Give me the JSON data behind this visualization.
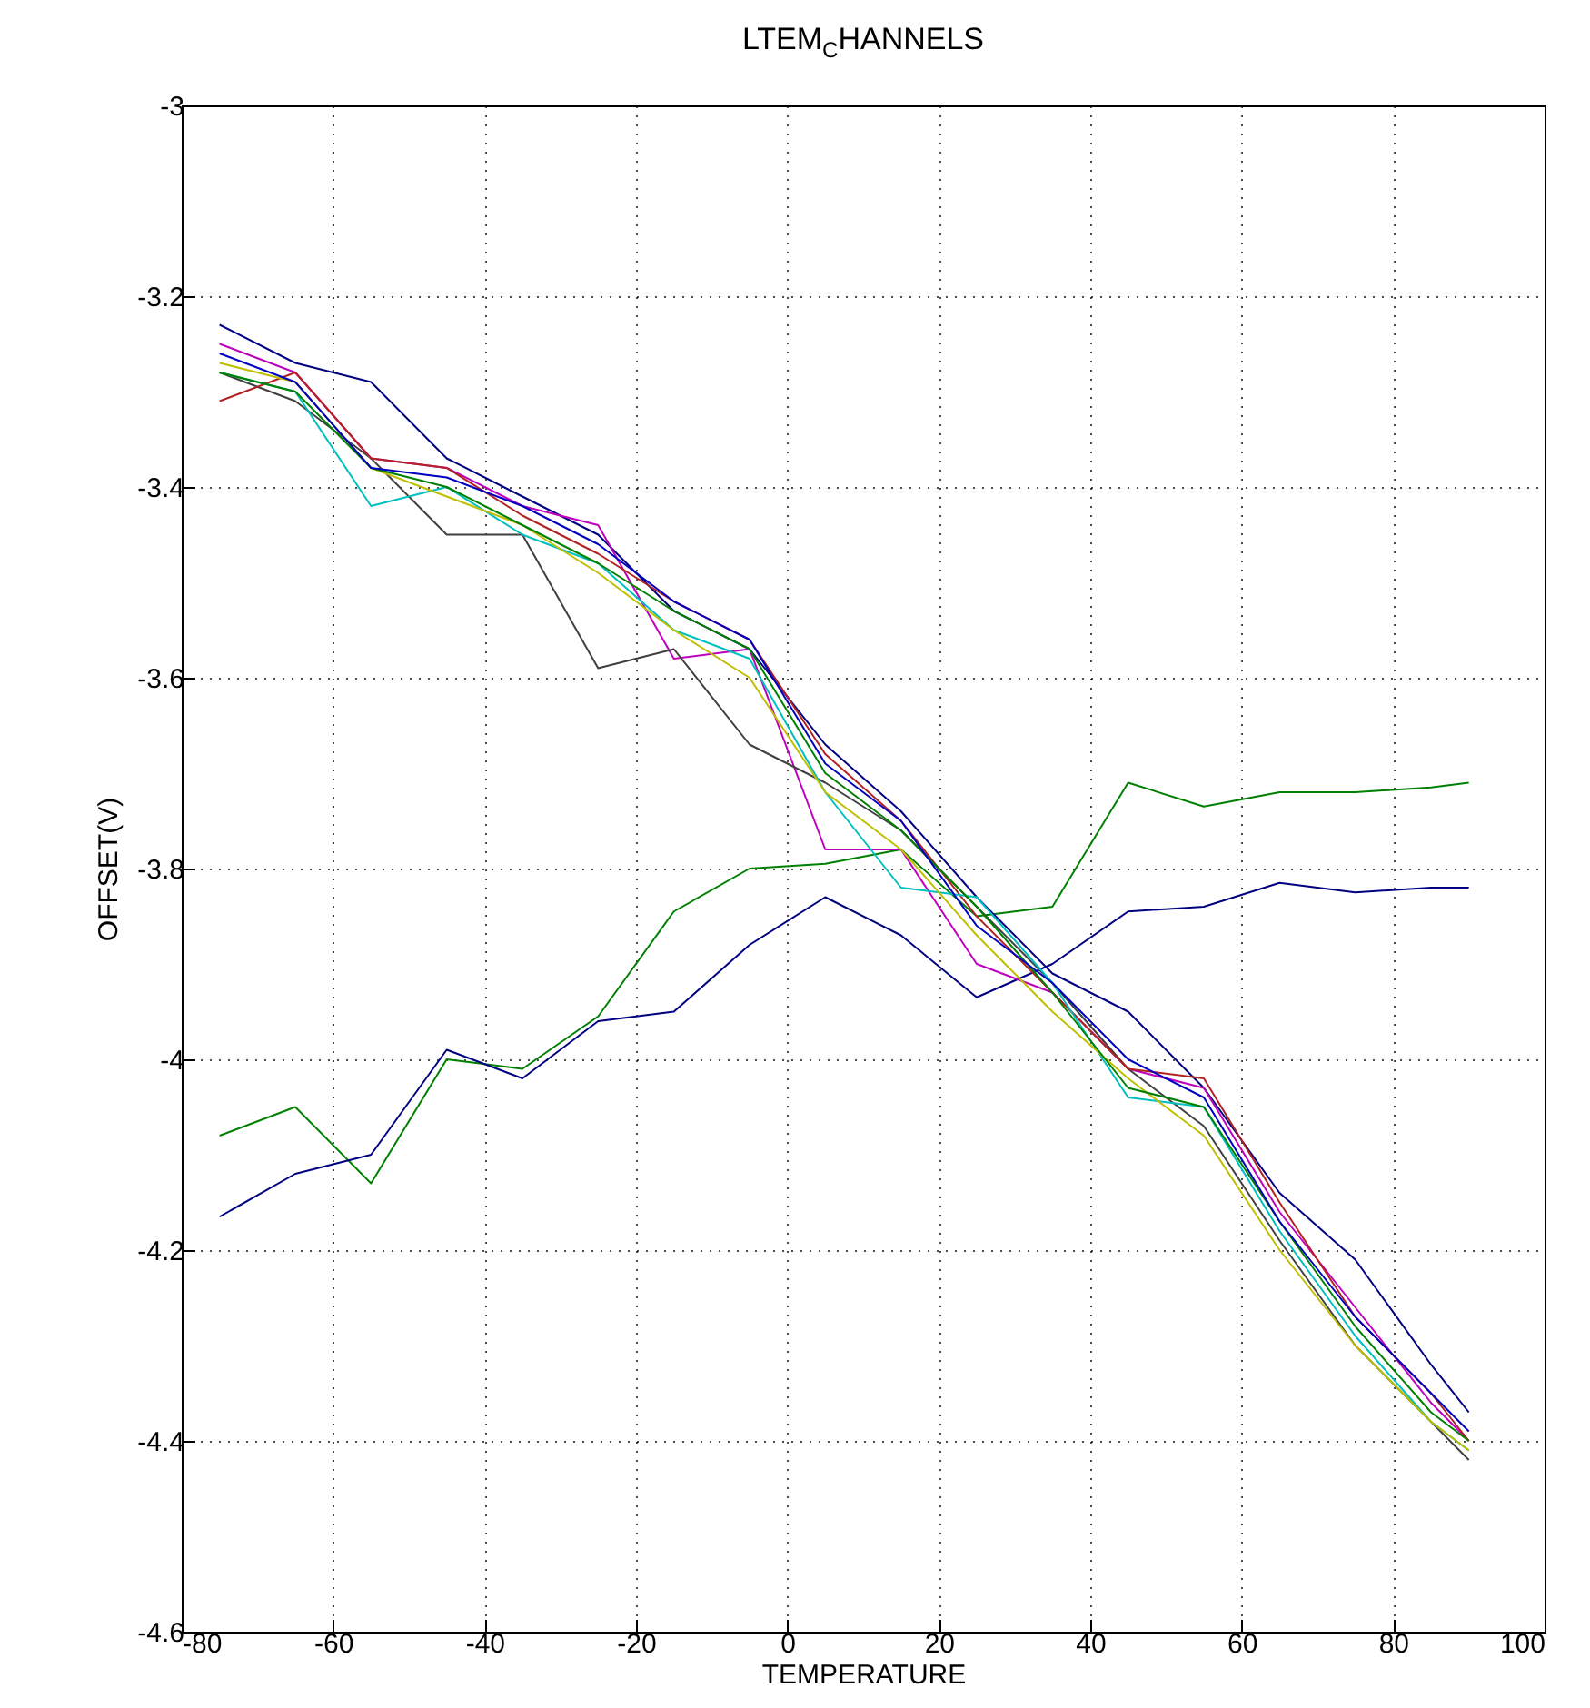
{
  "chart_data": {
    "type": "line",
    "title": "LTEM$_{C}$HANNELS",
    "xlabel": "TEMPERATURE",
    "ylabel": "OFFSET(V)",
    "x": [
      -75,
      -65,
      -55,
      -45,
      -35,
      -25,
      -15,
      -5,
      5,
      15,
      25,
      35,
      45,
      55,
      65,
      75,
      85,
      90
    ],
    "xlim": [
      -80,
      100
    ],
    "xticks": [
      -80,
      -60,
      -40,
      -20,
      0,
      20,
      40,
      60,
      80,
      100
    ],
    "ylim": [
      -4.6,
      -3
    ],
    "yticks": [
      -4.6,
      -4.4,
      -4.2,
      -4,
      -3.8,
      -3.6,
      -3.4,
      -3.2,
      -3
    ],
    "grid": true,
    "legend": false,
    "series": [
      {
        "color": "#008000",
        "values": [
          -4.08,
          -4.05,
          -4.13,
          -4.0,
          -4.01,
          -3.955,
          -3.845,
          -3.8,
          -3.795,
          -3.78,
          -3.85,
          -3.84,
          -3.71,
          -3.735,
          -3.72,
          -3.72,
          -3.715,
          -3.71
        ]
      },
      {
        "color": "#000080",
        "values": [
          -4.165,
          -4.12,
          -4.1,
          -3.99,
          -4.02,
          -3.96,
          -3.95,
          -3.88,
          -3.83,
          -3.87,
          -3.935,
          -3.9,
          -3.845,
          -3.84,
          -3.815,
          -3.825,
          -3.82,
          -3.82
        ]
      },
      {
        "color": "#000080",
        "values": [
          -3.23,
          -3.27,
          -3.29,
          -3.37,
          -3.41,
          -3.45,
          -3.53,
          -3.57,
          -3.67,
          -3.74,
          -3.83,
          -3.91,
          -3.95,
          -4.03,
          -4.14,
          -4.21,
          -4.32,
          -4.37
        ]
      },
      {
        "color": "#bf00bf",
        "values": [
          -3.25,
          -3.28,
          -3.37,
          -3.38,
          -3.42,
          -3.44,
          -3.58,
          -3.57,
          -3.78,
          -3.78,
          -3.9,
          -3.93,
          -4.01,
          -4.03,
          -4.16,
          -4.26,
          -4.36,
          -4.4
        ]
      },
      {
        "color": "#404040",
        "values": [
          -3.28,
          -3.31,
          -3.37,
          -3.45,
          -3.45,
          -3.59,
          -3.57,
          -3.67,
          -3.71,
          -3.76,
          -3.84,
          -3.92,
          -4.01,
          -4.07,
          -4.19,
          -4.3,
          -4.38,
          -4.42
        ]
      },
      {
        "color": "#b22222",
        "values": [
          -3.31,
          -3.28,
          -3.37,
          -3.38,
          -3.43,
          -3.47,
          -3.52,
          -3.56,
          -3.68,
          -3.75,
          -3.85,
          -3.93,
          -4.01,
          -4.02,
          -4.15,
          -4.27,
          -4.35,
          -4.4
        ]
      },
      {
        "color": "#00bfbf",
        "values": [
          -3.28,
          -3.3,
          -3.42,
          -3.4,
          -3.45,
          -3.48,
          -3.55,
          -3.58,
          -3.72,
          -3.82,
          -3.83,
          -3.92,
          -4.04,
          -4.05,
          -4.18,
          -4.29,
          -4.38,
          -4.41
        ]
      },
      {
        "color": "#bfbf00",
        "values": [
          -3.27,
          -3.29,
          -3.38,
          -3.41,
          -3.44,
          -3.49,
          -3.55,
          -3.6,
          -3.72,
          -3.78,
          -3.87,
          -3.95,
          -4.02,
          -4.08,
          -4.2,
          -4.3,
          -4.38,
          -4.41
        ]
      },
      {
        "color": "#008000",
        "values": [
          -3.28,
          -3.3,
          -3.38,
          -3.4,
          -3.44,
          -3.48,
          -3.53,
          -3.57,
          -3.7,
          -3.76,
          -3.84,
          -3.93,
          -4.03,
          -4.05,
          -4.17,
          -4.28,
          -4.37,
          -4.4
        ]
      },
      {
        "color": "#0000bf",
        "values": [
          -3.26,
          -3.29,
          -3.38,
          -3.39,
          -3.42,
          -3.46,
          -3.52,
          -3.56,
          -3.69,
          -3.75,
          -3.86,
          -3.92,
          -4.0,
          -4.04,
          -4.17,
          -4.27,
          -4.35,
          -4.39
        ]
      }
    ]
  }
}
